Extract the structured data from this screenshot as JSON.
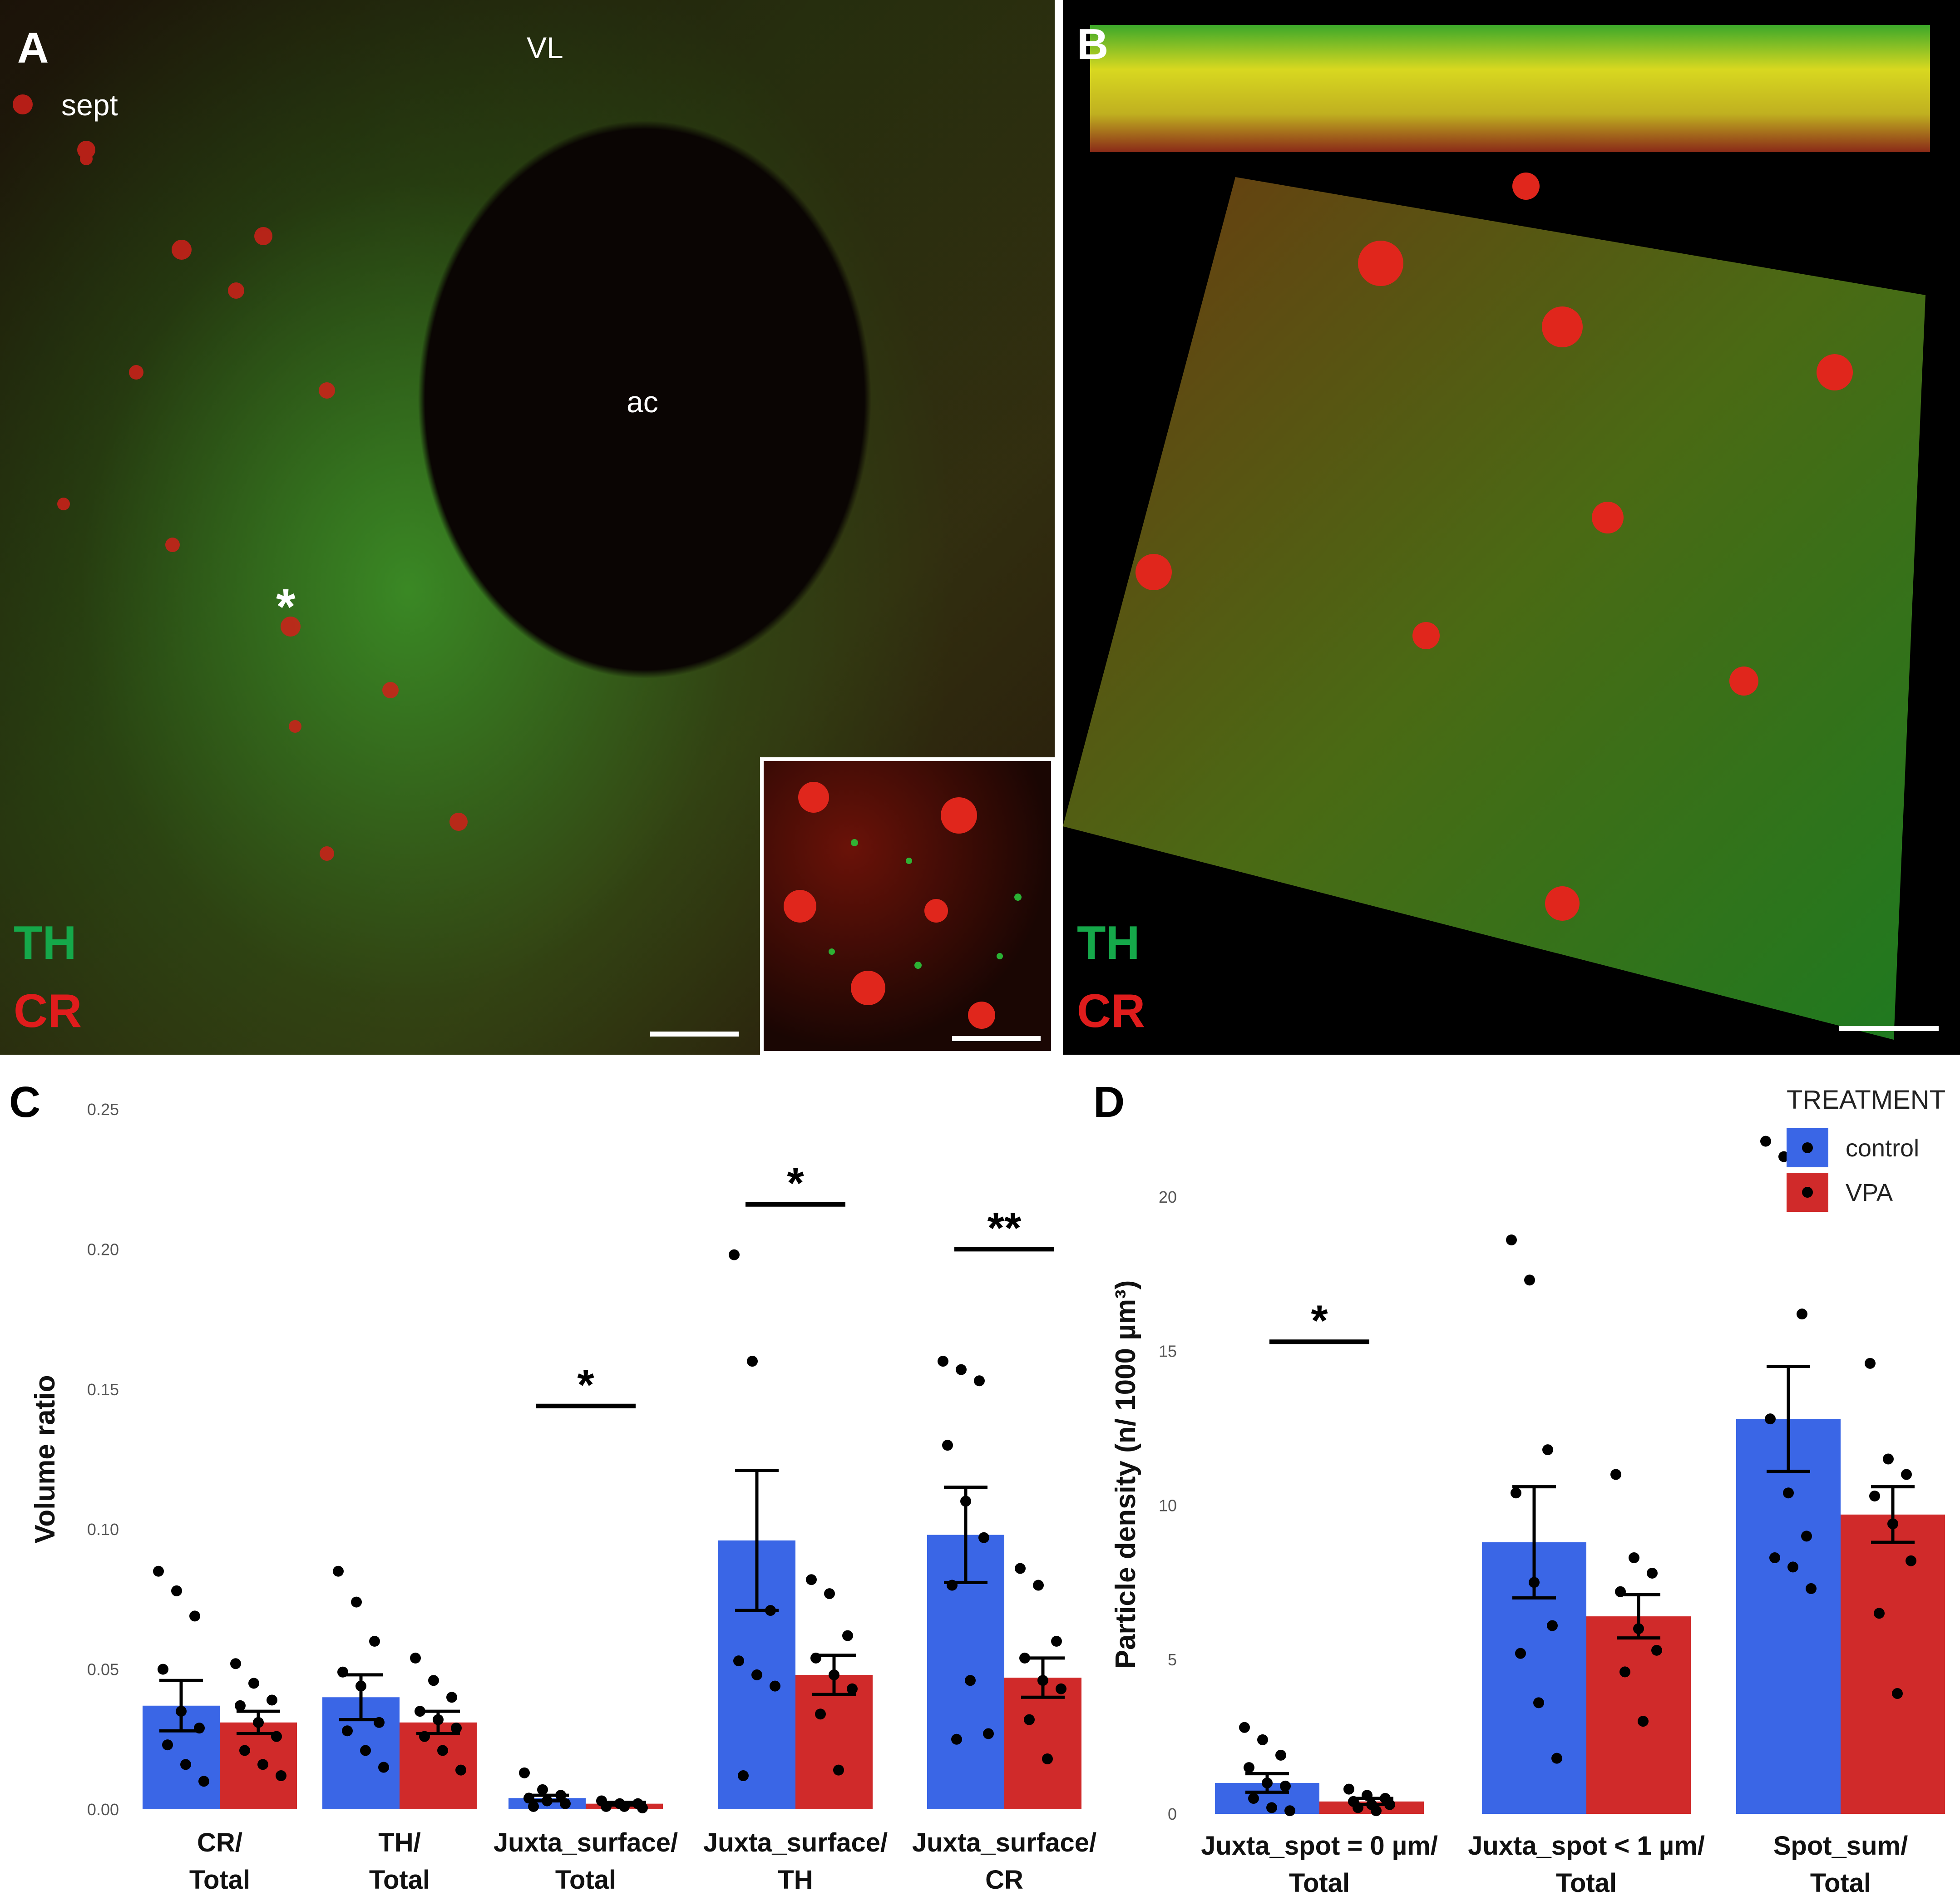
{
  "panels": {
    "A": {
      "label": "A",
      "regions": {
        "vl": "VL",
        "sept": "sept",
        "ac": "ac"
      },
      "asterisk": "*",
      "legend": {
        "th": "TH",
        "cr": "CR"
      }
    },
    "B": {
      "label": "B",
      "legend": {
        "th": "TH",
        "cr": "CR"
      }
    },
    "C": {
      "label": "C"
    },
    "D": {
      "label": "D"
    }
  },
  "colors": {
    "control": "#3a66e6",
    "vpa": "#d02a2a",
    "th_label": "#15a84a",
    "cr_label": "#e01c1c"
  },
  "chart_data": [
    {
      "type": "bar",
      "panel": "C",
      "ylabel": "Volume ratio",
      "ylim": [
        0,
        0.25
      ],
      "yticks": [
        "0.00",
        "0.05",
        "0.10",
        "0.15",
        "0.20",
        "0.25"
      ],
      "categories": [
        [
          "CR/",
          "Total"
        ],
        [
          "TH/",
          "Total"
        ],
        [
          "Juxta_surface/",
          "Total"
        ],
        [
          "Juxta_surface/",
          "TH"
        ],
        [
          "Juxta_surface/",
          "CR"
        ]
      ],
      "series": [
        {
          "name": "control",
          "values": [
            0.037,
            0.04,
            0.004,
            0.096,
            0.098
          ],
          "se": [
            0.009,
            0.008,
            0.001,
            0.025,
            0.017
          ]
        },
        {
          "name": "VPA",
          "values": [
            0.031,
            0.031,
            0.002,
            0.048,
            0.047
          ],
          "se": [
            0.004,
            0.004,
            0.0005,
            0.007,
            0.007
          ]
        }
      ],
      "points": [
        {
          "control": [
            0.085,
            0.078,
            0.069,
            0.05,
            0.035,
            0.029,
            0.023,
            0.016,
            0.01
          ],
          "VPA": [
            0.052,
            0.045,
            0.039,
            0.037,
            0.031,
            0.026,
            0.021,
            0.016,
            0.012
          ]
        },
        {
          "control": [
            0.085,
            0.074,
            0.06,
            0.049,
            0.044,
            0.031,
            0.028,
            0.021,
            0.015
          ],
          "VPA": [
            0.054,
            0.046,
            0.04,
            0.035,
            0.032,
            0.029,
            0.026,
            0.021,
            0.014
          ]
        },
        {
          "control": [
            0.013,
            0.007,
            0.005,
            0.004,
            0.003,
            0.002,
            0.001
          ],
          "VPA": [
            0.003,
            0.002,
            0.002,
            0.001,
            0.001,
            0.0005
          ]
        },
        {
          "control": [
            0.198,
            0.16,
            0.071,
            0.053,
            0.048,
            0.044,
            0.012
          ],
          "VPA": [
            0.082,
            0.077,
            0.062,
            0.054,
            0.048,
            0.043,
            0.034,
            0.014
          ]
        },
        {
          "control": [
            0.16,
            0.157,
            0.153,
            0.13,
            0.11,
            0.097,
            0.08,
            0.046,
            0.027,
            0.025
          ],
          "VPA": [
            0.086,
            0.08,
            0.06,
            0.054,
            0.046,
            0.043,
            0.032,
            0.018
          ]
        }
      ],
      "significance": [
        {
          "category": 2,
          "label": "*",
          "y": 0.144
        },
        {
          "category": 3,
          "label": "*",
          "y": 0.216
        },
        {
          "category": 4,
          "label": "**",
          "y": 0.2
        }
      ]
    },
    {
      "type": "bar",
      "panel": "D",
      "ylabel": "Particle density (n/ 1000 µm³)",
      "ylim": [
        0,
        22
      ],
      "yticks": [
        "0",
        "5",
        "10",
        "15",
        "20"
      ],
      "categories": [
        [
          "Juxta_spot = 0 µm/",
          "Total"
        ],
        [
          "Juxta_spot < 1 µm/",
          "Total"
        ],
        [
          "Spot_sum/",
          "Total"
        ]
      ],
      "series": [
        {
          "name": "control",
          "values": [
            1.0,
            8.8,
            12.8
          ],
          "se": [
            0.3,
            1.8,
            1.7
          ]
        },
        {
          "name": "VPA",
          "values": [
            0.4,
            6.4,
            9.7
          ],
          "se": [
            0.1,
            0.7,
            0.9
          ]
        }
      ],
      "points": [
        {
          "control": [
            2.8,
            2.4,
            1.9,
            1.5,
            1.0,
            0.9,
            0.5,
            0.2,
            0.1
          ],
          "VPA": [
            0.8,
            0.6,
            0.5,
            0.4,
            0.3,
            0.3,
            0.2,
            0.1
          ]
        },
        {
          "control": [
            18.6,
            17.3,
            11.8,
            10.4,
            7.5,
            6.1,
            5.2,
            3.6,
            1.8
          ],
          "VPA": [
            11.0,
            8.3,
            7.8,
            7.2,
            6.0,
            5.3,
            4.6,
            3.0
          ]
        },
        {
          "control": [
            21.8,
            21.3,
            16.2,
            12.8,
            10.4,
            9.0,
            8.3,
            8.0,
            7.3
          ],
          "VPA": [
            14.6,
            11.5,
            11.0,
            10.3,
            9.4,
            8.2,
            6.5,
            3.9
          ]
        }
      ],
      "significance": [
        {
          "category": 0,
          "label": "*",
          "y": 15.3
        }
      ],
      "legend": {
        "title": "TREATMENT",
        "entries": [
          "control",
          "VPA"
        ],
        "position": "top-right"
      }
    }
  ]
}
